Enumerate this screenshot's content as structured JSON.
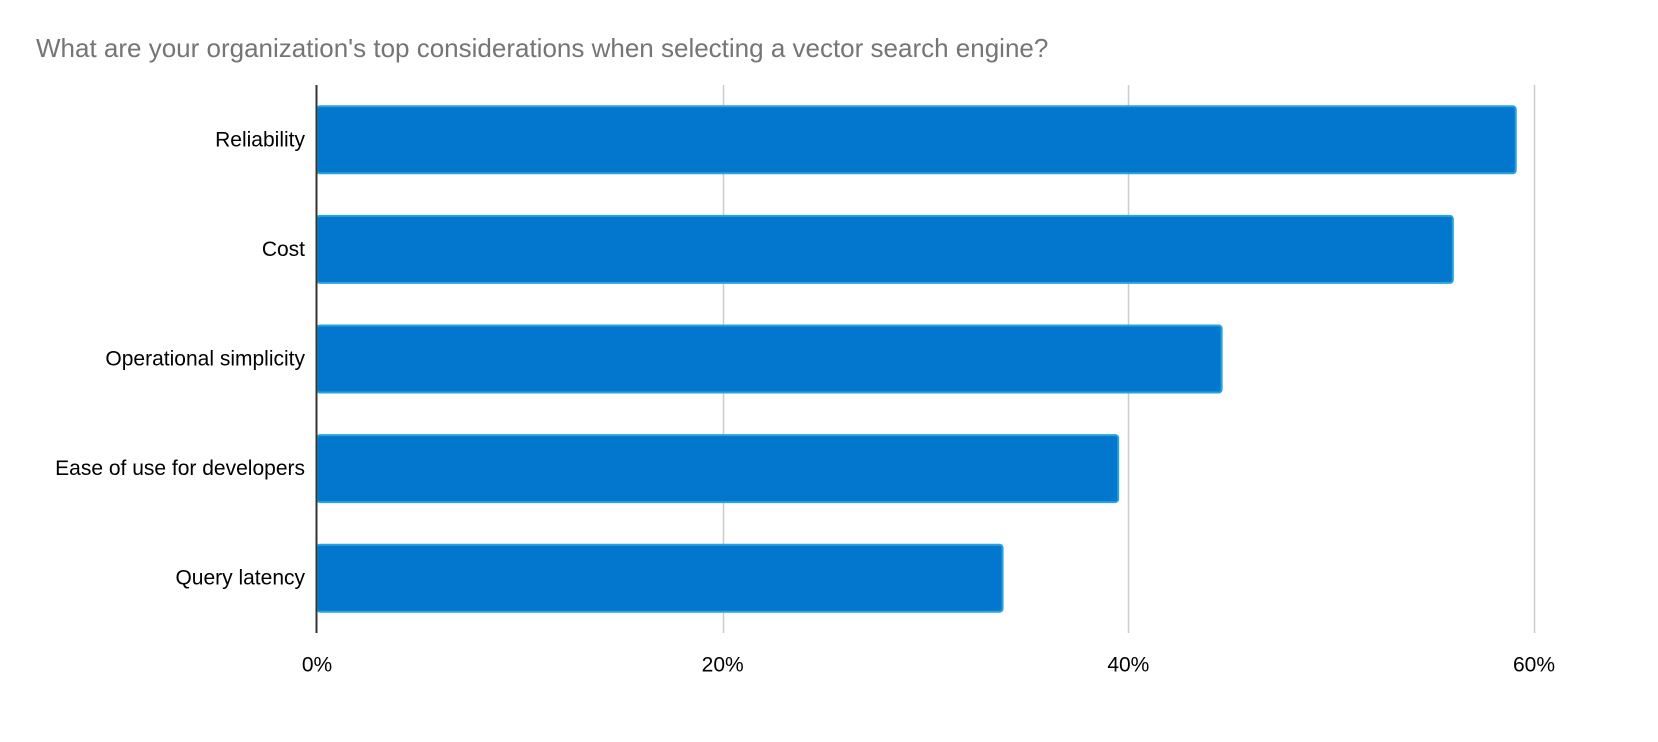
{
  "chart_data": {
    "type": "bar",
    "orientation": "horizontal",
    "title": "What are your organization's top considerations when selecting a vector search engine?",
    "xlabel": "",
    "ylabel": "",
    "categories": [
      "Reliability",
      "Cost",
      "Operational simplicity",
      "Ease of use for developers",
      "Query latency"
    ],
    "values": [
      59.1,
      56.0,
      44.6,
      39.5,
      33.8
    ],
    "xlim": [
      0,
      60
    ],
    "x_ticks": [
      0,
      20,
      40,
      60
    ],
    "x_tick_labels": [
      "0%",
      "20%",
      "40%",
      "60%"
    ],
    "grid": true,
    "legend": "none",
    "colors": {
      "bar_fill": "#0277cd",
      "bar_stroke": "#29a3de",
      "grid": "#cccccc",
      "axis": "#333333",
      "title": "#757575"
    }
  }
}
